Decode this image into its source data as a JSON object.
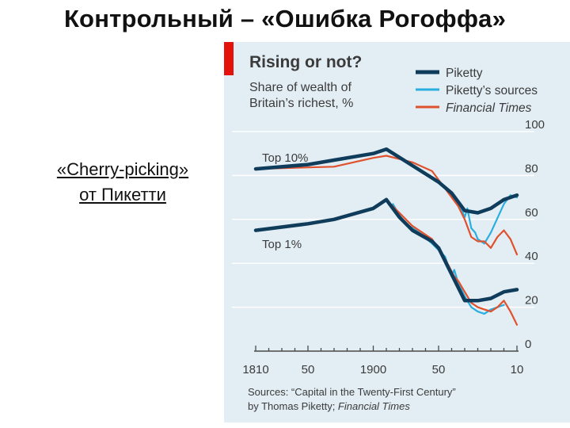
{
  "slide": {
    "title": "Контрольный – «Ошибка Рогоффа»",
    "caption_line1": "«Cherry-picking»",
    "caption_line2": "от Пикетти"
  },
  "colors": {
    "panel_bg": "#e3eef4",
    "accent_red_bar": "#e3120b",
    "piketty": "#0f3c5a",
    "pikettys_sources": "#2aaee0",
    "financial_times": "#e0512e",
    "gridline": "#ffffff",
    "text": "#3b3b3b"
  },
  "chart_data": {
    "type": "line",
    "title": "Rising or not?",
    "subtitle_line1": "Share of wealth of",
    "subtitle_line2": "Britain’s richest, %",
    "ylim": [
      0,
      100
    ],
    "y_ticks": [
      0,
      20,
      40,
      60,
      80,
      100
    ],
    "xlim": [
      1810,
      2010
    ],
    "x_tick_values": [
      1810,
      1850,
      1900,
      1950,
      2010
    ],
    "x_tick_labels": [
      "1810",
      "50",
      "1900",
      "50",
      "10"
    ],
    "legend": [
      "Piketty",
      "Piketty’s sources",
      "Financial Times"
    ],
    "series_labels": {
      "top10": "Top 10%",
      "top1": "Top 1%"
    },
    "source_line1": "Sources: “Capital in the Twenty-First Century”",
    "source_line2a": "by Thomas Piketty; ",
    "source_line2b": "Financial Times",
    "series": [
      {
        "name": "Piketty",
        "group": "Top 10%",
        "x": [
          1810,
          1850,
          1870,
          1900,
          1910,
          1950,
          1960,
          1970,
          1980,
          1990,
          2000,
          2010
        ],
        "y": [
          83,
          85,
          87,
          90,
          92,
          77,
          72,
          64,
          63,
          65,
          69,
          71
        ]
      },
      {
        "name": "Financial Times",
        "group": "Top 10%",
        "x": [
          1810,
          1870,
          1900,
          1910,
          1930,
          1945,
          1955,
          1965,
          1970,
          1975,
          1980,
          1985,
          1990,
          1995,
          2000,
          2005,
          2010
        ],
        "y": [
          83,
          84,
          88,
          89,
          86,
          82,
          74,
          66,
          60,
          52,
          50,
          50,
          47,
          52,
          55,
          51,
          44
        ]
      },
      {
        "name": "Piketty’s sources",
        "group": "Top 10%",
        "x": [
          1960,
          1965,
          1970,
          1972,
          1975,
          1978,
          1980,
          1985,
          1990,
          2000,
          2005,
          2010
        ],
        "y": [
          71,
          68,
          61,
          65,
          56,
          54,
          51,
          49,
          54,
          67,
          71,
          70
        ]
      },
      {
        "name": "Piketty",
        "group": "Top 1%",
        "x": [
          1810,
          1850,
          1870,
          1900,
          1910,
          1920,
          1930,
          1945,
          1950,
          1960,
          1970,
          1980,
          1990,
          2000,
          2010
        ],
        "y": [
          55,
          58,
          60,
          65,
          69,
          61,
          55,
          50,
          47,
          35,
          23,
          23,
          24,
          27,
          28
        ]
      },
      {
        "name": "Financial Times",
        "group": "Top 1%",
        "x": [
          1910,
          1920,
          1930,
          1945,
          1955,
          1962,
          1965,
          1970,
          1975,
          1980,
          1985,
          1990,
          1995,
          2000,
          2005,
          2010
        ],
        "y": [
          69,
          63,
          57,
          51,
          42,
          34,
          32,
          27,
          22,
          20,
          19,
          18,
          20,
          23,
          18,
          12
        ]
      },
      {
        "name": "Piketty’s sources",
        "group": "Top 1%",
        "x": [
          1915,
          1920,
          1925,
          1935,
          1945,
          1955,
          1960,
          1962,
          1965,
          1970,
          1975,
          1980,
          1985,
          1990,
          1995,
          2000
        ],
        "y": [
          67,
          62,
          58,
          54,
          49,
          43,
          34,
          37,
          31,
          25,
          20,
          18,
          17,
          19,
          20,
          21
        ]
      }
    ]
  }
}
